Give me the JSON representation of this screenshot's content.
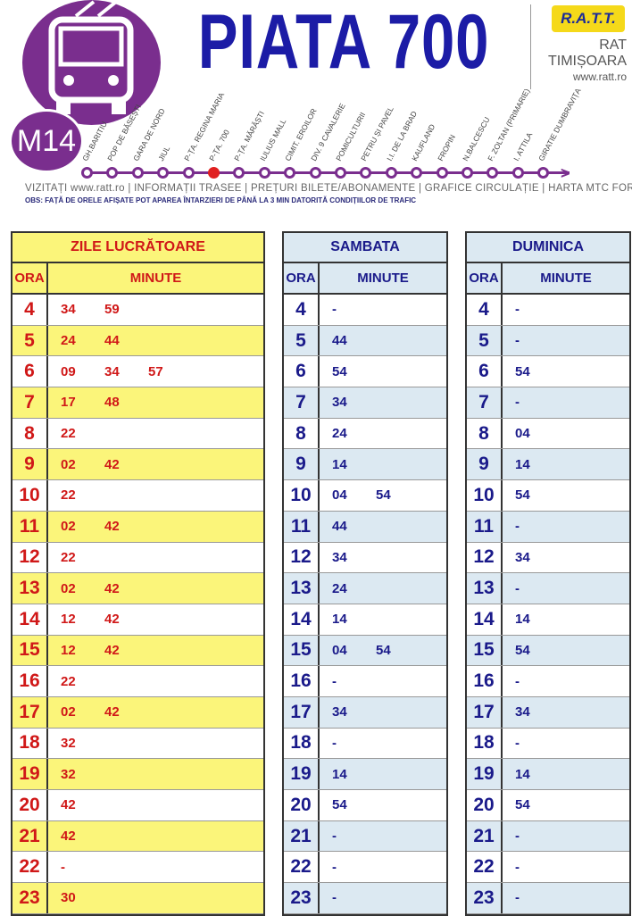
{
  "header": {
    "title": "PIATA 700",
    "line": "M14",
    "operator_logo": "R.A.T.T.",
    "operator_line1": "RAT",
    "operator_line2": "TIMIȘOARA",
    "website": "www.ratt.ro",
    "links": "VIZITAȚI www.ratt.ro | INFORMAȚII TRASEE | PREȚURI BILETE/ABONAMENTE | GRAFICE CIRCULAȚIE | HARTA MTC   FORUM  |",
    "note": "OBS: FAȚĂ DE ORELE AFIȘATE POT APAREA ÎNTARZIERI DE PÂNĂ LA 3 MIN DATORITĂ CONDIȚIILOR DE TRAFIC",
    "accent": "#7a2e8e",
    "current_stop_index": 5
  },
  "stops": [
    "GH.BARITIU",
    "POP DE BĂSEȘTI",
    "GARA DE NORD",
    "JIUL",
    "P-ȚA. REGINA MARIA",
    "P-ȚA. 700",
    "P-ȚA. MĂRĂȘTI",
    "IULIUS MALL",
    "CIMIT. EROILOR",
    "DIV. 9 CAVALERIE",
    "POMICULTURII",
    "PETRU ȘI PAVEL",
    "I.I. DE LA BRAD",
    "KAUFLAND",
    "FROPIN",
    "N.BALCESCU",
    "F. ZOLTAN (PRIMARIE)",
    "I. ATTILA",
    "GIRATIE DUMBRAVIȚA"
  ],
  "tables": [
    {
      "id": "work",
      "title": "ZILE LUCRĂTOARE",
      "ora": "ORA",
      "minute": "MINUTE",
      "rows": [
        [
          "4",
          [
            "34",
            "59"
          ]
        ],
        [
          "5",
          [
            "24",
            "44"
          ]
        ],
        [
          "6",
          [
            "09",
            "34",
            "57"
          ]
        ],
        [
          "7",
          [
            "17",
            "48"
          ]
        ],
        [
          "8",
          [
            "22"
          ]
        ],
        [
          "9",
          [
            "02",
            "42"
          ]
        ],
        [
          "10",
          [
            "22"
          ]
        ],
        [
          "11",
          [
            "02",
            "42"
          ]
        ],
        [
          "12",
          [
            "22"
          ]
        ],
        [
          "13",
          [
            "02",
            "42"
          ]
        ],
        [
          "14",
          [
            "12",
            "42"
          ]
        ],
        [
          "15",
          [
            "12",
            "42"
          ]
        ],
        [
          "16",
          [
            "22"
          ]
        ],
        [
          "17",
          [
            "02",
            "42"
          ]
        ],
        [
          "18",
          [
            "32"
          ]
        ],
        [
          "19",
          [
            "32"
          ]
        ],
        [
          "20",
          [
            "42"
          ]
        ],
        [
          "21",
          [
            "42"
          ]
        ],
        [
          "22",
          [
            "-"
          ]
        ],
        [
          "23",
          [
            "30"
          ]
        ]
      ]
    },
    {
      "id": "sat",
      "title": "SAMBATA",
      "ora": "ORA",
      "minute": "MINUTE",
      "rows": [
        [
          "4",
          [
            "-"
          ]
        ],
        [
          "5",
          [
            "44"
          ]
        ],
        [
          "6",
          [
            "54"
          ]
        ],
        [
          "7",
          [
            "34"
          ]
        ],
        [
          "8",
          [
            "24"
          ]
        ],
        [
          "9",
          [
            "14"
          ]
        ],
        [
          "10",
          [
            "04",
            "54"
          ]
        ],
        [
          "11",
          [
            "44"
          ]
        ],
        [
          "12",
          [
            "34"
          ]
        ],
        [
          "13",
          [
            "24"
          ]
        ],
        [
          "14",
          [
            "14"
          ]
        ],
        [
          "15",
          [
            "04",
            "54"
          ]
        ],
        [
          "16",
          [
            "-"
          ]
        ],
        [
          "17",
          [
            "34"
          ]
        ],
        [
          "18",
          [
            "-"
          ]
        ],
        [
          "19",
          [
            "14"
          ]
        ],
        [
          "20",
          [
            "54"
          ]
        ],
        [
          "21",
          [
            "-"
          ]
        ],
        [
          "22",
          [
            "-"
          ]
        ],
        [
          "23",
          [
            "-"
          ]
        ]
      ]
    },
    {
      "id": "sun",
      "title": "DUMINICA",
      "ora": "ORA",
      "minute": "MINUTE",
      "rows": [
        [
          "4",
          [
            "-"
          ]
        ],
        [
          "5",
          [
            "-"
          ]
        ],
        [
          "6",
          [
            "54"
          ]
        ],
        [
          "7",
          [
            "-"
          ]
        ],
        [
          "8",
          [
            "04"
          ]
        ],
        [
          "9",
          [
            "14"
          ]
        ],
        [
          "10",
          [
            "54"
          ]
        ],
        [
          "11",
          [
            "-"
          ]
        ],
        [
          "12",
          [
            "34"
          ]
        ],
        [
          "13",
          [
            "-"
          ]
        ],
        [
          "14",
          [
            "14"
          ]
        ],
        [
          "15",
          [
            "54"
          ]
        ],
        [
          "16",
          [
            "-"
          ]
        ],
        [
          "17",
          [
            "34"
          ]
        ],
        [
          "18",
          [
            "-"
          ]
        ],
        [
          "19",
          [
            "14"
          ]
        ],
        [
          "20",
          [
            "54"
          ]
        ],
        [
          "21",
          [
            "-"
          ]
        ],
        [
          "22",
          [
            "-"
          ]
        ],
        [
          "23",
          [
            "-"
          ]
        ]
      ]
    }
  ]
}
